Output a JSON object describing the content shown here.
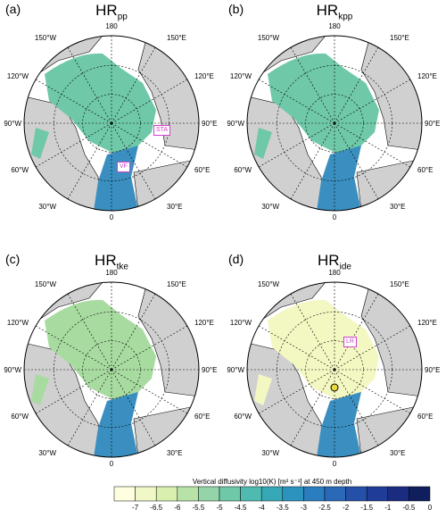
{
  "panels": [
    {
      "label": "(a)",
      "title_main": "HR",
      "title_sub": "pp",
      "tags": [
        {
          "text": "STA"
        },
        {
          "text": "VF"
        }
      ],
      "fill": "#6fc8a8",
      "fill2": "#3a8fc0"
    },
    {
      "label": "(b)",
      "title_main": "HR",
      "title_sub": "kpp",
      "tags": [],
      "fill": "#6fc8a8",
      "fill2": "#3a8fc0"
    },
    {
      "label": "(c)",
      "title_main": "HR",
      "title_sub": "tke",
      "tags": [],
      "fill": "#a8dba0",
      "fill2": "#3a8fc0"
    },
    {
      "label": "(d)",
      "title_main": "HR",
      "title_sub": "ide",
      "tags": [
        {
          "text": "LR"
        }
      ],
      "fill": "#f3f8c2",
      "fill2": "#3a8fc0"
    }
  ],
  "lon_labels": {
    "top": "180",
    "top_left": "150°W",
    "top_right": "150°E",
    "upper_left": "120°W",
    "upper_right": "120°E",
    "mid_left": "90°W",
    "mid_right": "90°E",
    "lower_left": "60°W",
    "lower_right": "60°E",
    "bottom_left": "30°W",
    "bottom_right": "30°E",
    "bottom": "0"
  },
  "colorbar": {
    "title": "Vertical diffusivity log10(K) [m² s⁻¹] at 450 m depth",
    "ticks": [
      "-7",
      "-6.5",
      "-6",
      "-5.5",
      "-5",
      "-4.5",
      "-4",
      "-3.5",
      "-3",
      "-2.5",
      "-2",
      "-1.5",
      "-1",
      "-0.5",
      "0"
    ],
    "colors": [
      "#ffffe0",
      "#f0f8c8",
      "#d8efb0",
      "#b8e2a8",
      "#94d4a8",
      "#6fc8a8",
      "#4fbab0",
      "#36a8b8",
      "#2c93bf",
      "#2a7ec0",
      "#2a68b8",
      "#2550a8",
      "#1f3c98",
      "#1a2c80",
      "#0f1e5c"
    ]
  },
  "colors": {
    "land": "#d0d0d0",
    "ocean": "#ffffff"
  }
}
